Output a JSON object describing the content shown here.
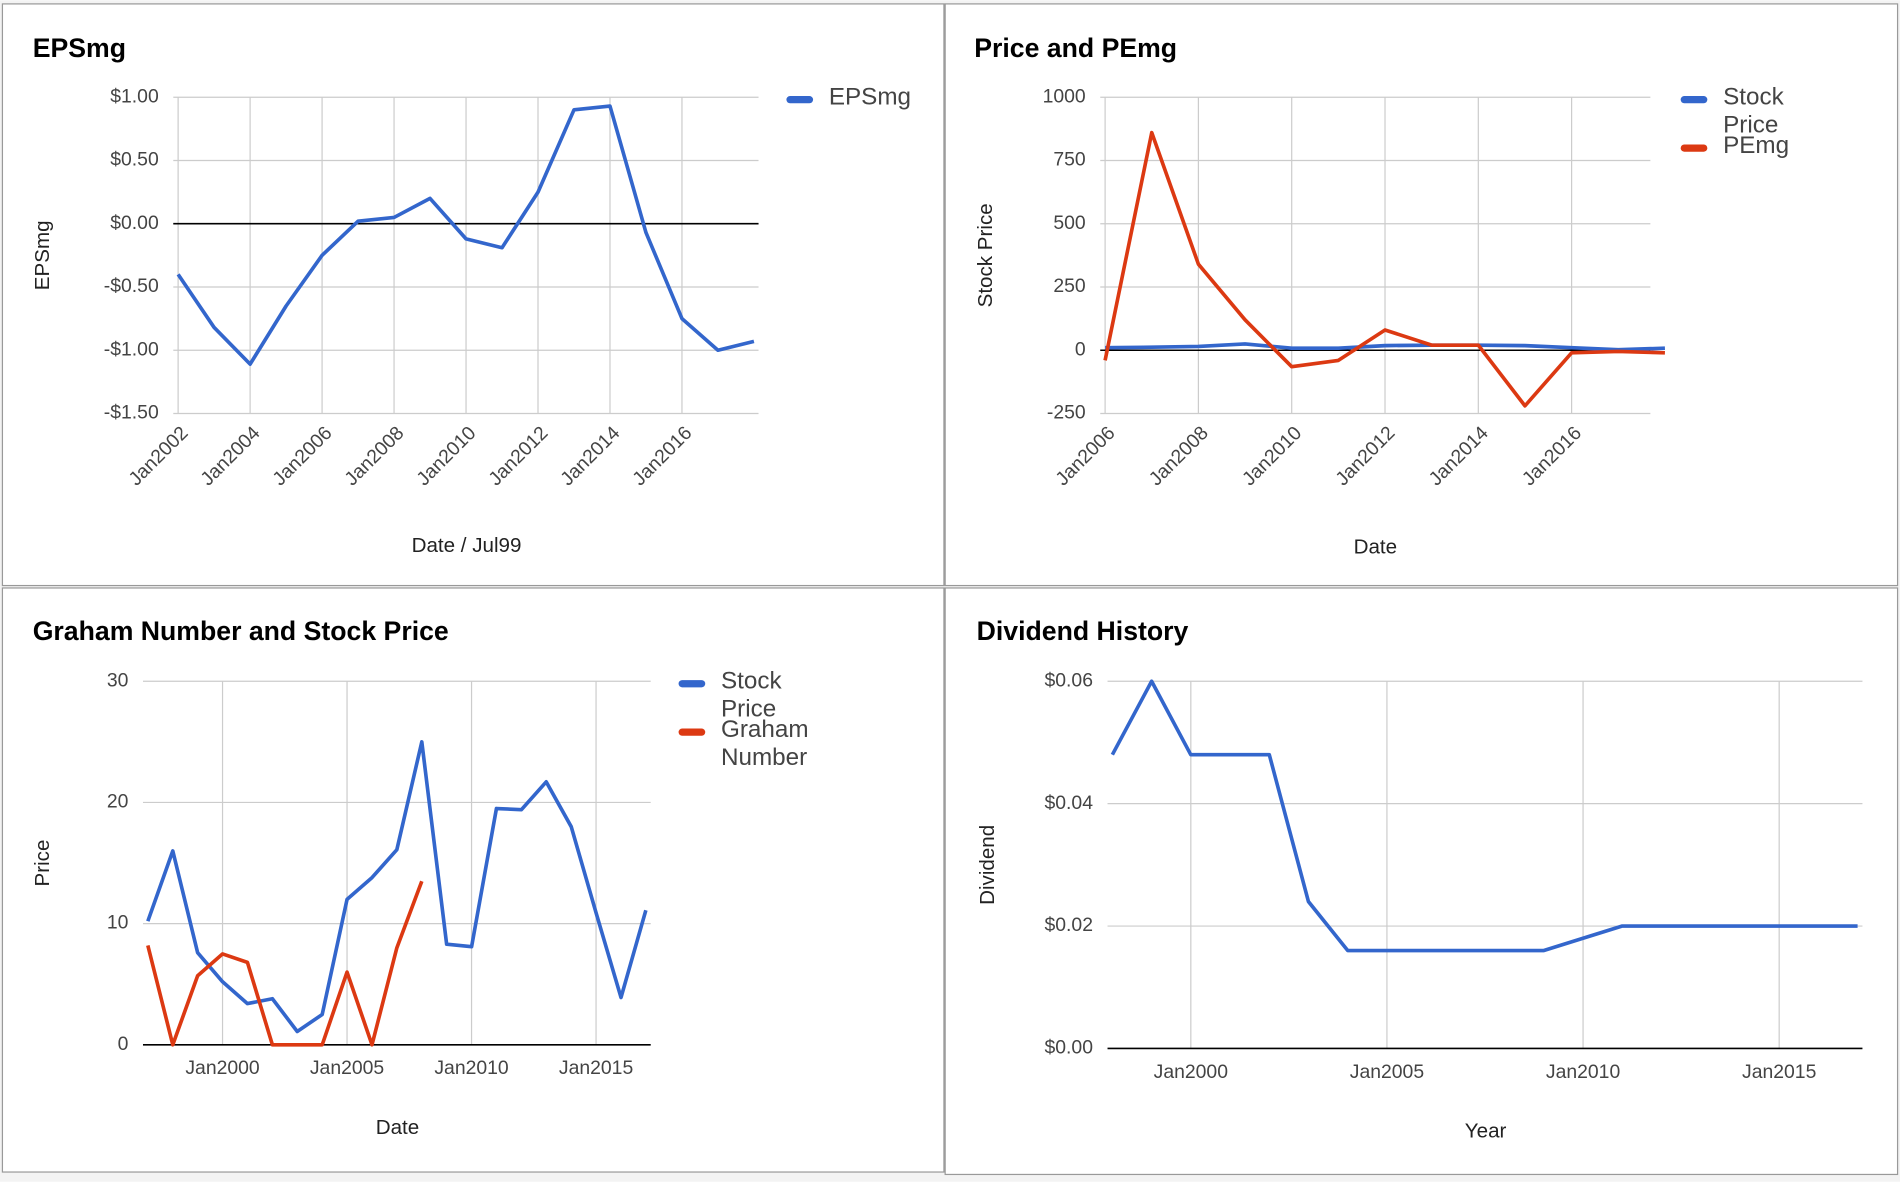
{
  "chart_data": [
    {
      "type": "line",
      "title": "EPSmg",
      "x_label": "Date / Jul99",
      "y_label": "EPSmg",
      "legend": "right",
      "categories": [
        "Jan2002",
        null,
        "Jan2004",
        null,
        "Jan2006",
        null,
        "Jan2008",
        null,
        "Jan2010",
        null,
        "Jan2012",
        null,
        "Jan2014",
        null,
        "Jan2016",
        null,
        null
      ],
      "series": [
        {
          "name": "EPSmg",
          "color": "#3366cc",
          "values": [
            -0.4,
            -0.82,
            -1.11,
            -0.65,
            -0.25,
            0.02,
            0.05,
            0.2,
            -0.12,
            -0.19,
            0.25,
            0.9,
            0.93,
            -0.07,
            -0.75,
            -1.0,
            -0.93
          ]
        }
      ],
      "ylim": [
        -1.5,
        1.0
      ],
      "yticks": [
        {
          "value": -1.5,
          "label": "-$1.50"
        },
        {
          "value": -1.0,
          "label": "-$1.00"
        },
        {
          "value": -0.5,
          "label": "-$0.50"
        },
        {
          "value": 0,
          "label": "$0.00"
        },
        {
          "value": 0.5,
          "label": "$0.50"
        },
        {
          "value": 1.0,
          "label": "$1.00"
        }
      ],
      "grid": true
    },
    {
      "type": "line",
      "title": "Price and PEmg",
      "x_label": "Date",
      "y_label": "Stock Price",
      "legend": "right",
      "categories": [
        "Jan2006",
        null,
        "Jan2008",
        null,
        "Jan2010",
        null,
        "Jan2012",
        null,
        "Jan2014",
        null,
        "Jan2016",
        null,
        null
      ],
      "series": [
        {
          "name": "Stock Price",
          "color": "#3366cc",
          "values": [
            10,
            12,
            15,
            25,
            8,
            8,
            18,
            20,
            20,
            18,
            10,
            2,
            8
          ]
        },
        {
          "name": "PEmg",
          "color": "#dc3912",
          "values": [
            -40,
            860,
            340,
            120,
            -65,
            -40,
            80,
            20,
            20,
            -220,
            -10,
            -5,
            -10
          ]
        }
      ],
      "ylim": [
        -250,
        1000
      ],
      "yticks": [
        -250,
        0,
        250,
        500,
        750,
        1000
      ],
      "grid": true
    },
    {
      "type": "line",
      "title": "Graham Number and Stock Price",
      "x_label": "Date",
      "y_label": "Price",
      "legend": "right",
      "categories": [
        null,
        null,
        null,
        "Jan2000",
        null,
        null,
        null,
        null,
        "Jan2005",
        null,
        null,
        null,
        null,
        "Jan2010",
        null,
        null,
        null,
        null,
        "Jan2015",
        null,
        null
      ],
      "series": [
        {
          "name": "Stock Price",
          "color": "#3366cc",
          "values": [
            10.2,
            16,
            7.6,
            5.2,
            3.4,
            3.8,
            1.1,
            2.5,
            12,
            13.8,
            16.1,
            25,
            8.3,
            8.1,
            19.5,
            19.4,
            21.7,
            18,
            10.9,
            3.9,
            11.1
          ]
        },
        {
          "name": "Graham Number",
          "color": "#dc3912",
          "values": [
            8.2,
            0,
            5.7,
            7.5,
            6.8,
            0,
            0,
            0,
            6,
            0,
            8,
            13.5,
            null,
            null,
            null,
            null,
            null,
            null,
            null,
            null,
            null
          ]
        }
      ],
      "ylim": [
        0,
        30
      ],
      "yticks": [
        0,
        10,
        20,
        30
      ],
      "grid": true
    },
    {
      "type": "line",
      "title": "Dividend History",
      "x_label": "Year",
      "y_label": "Dividend",
      "categories": [
        null,
        null,
        "Jan2000",
        null,
        null,
        null,
        null,
        "Jan2005",
        null,
        null,
        null,
        null,
        "Jan2010",
        null,
        null,
        null,
        null,
        "Jan2015",
        null,
        null
      ],
      "series": [
        {
          "name": "Dividend",
          "color": "#3366cc",
          "values": [
            0.048,
            0.06,
            0.048,
            0.048,
            0.048,
            0.024,
            0.016,
            0.016,
            0.016,
            0.016,
            0.016,
            0.016,
            0.018,
            0.02,
            0.02,
            0.02,
            0.02,
            0.02,
            0.02,
            0.02
          ]
        }
      ],
      "ylim": [
        0,
        0.06
      ],
      "yticks": [
        {
          "value": 0,
          "label": "$0.00"
        },
        {
          "value": 0.02,
          "label": "$0.02"
        },
        {
          "value": 0.04,
          "label": "$0.04"
        },
        {
          "value": 0.06,
          "label": "$0.06"
        }
      ],
      "grid": true
    }
  ]
}
